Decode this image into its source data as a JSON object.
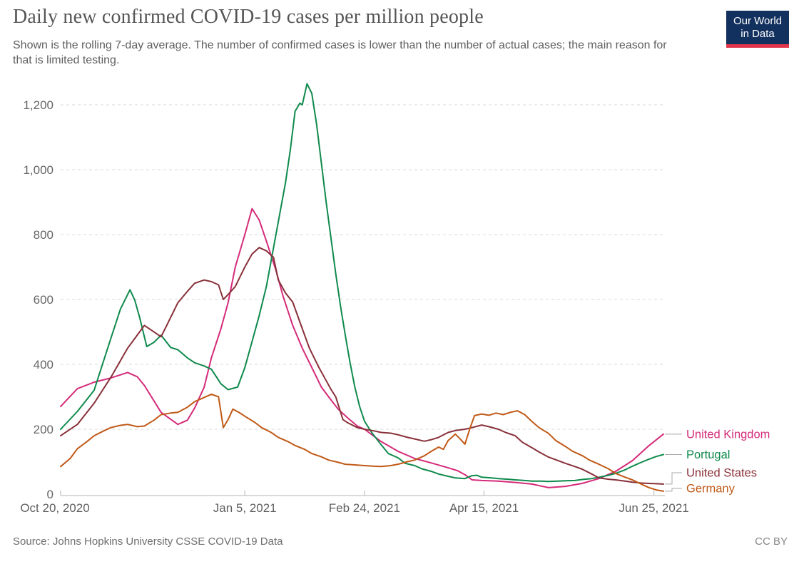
{
  "header": {
    "title": "Daily new confirmed COVID-19 cases per million people",
    "subtitle": "Shown is the rolling 7-day average. The number of confirmed cases is lower than the number of actual cases; the main reason for that is limited testing.",
    "logo": {
      "line1": "Our World",
      "line2": "in Data",
      "bg_color": "#13315e",
      "accent_color": "#e0354a"
    }
  },
  "footer": {
    "source": "Source: Johns Hopkins University CSSE COVID-19 Data",
    "license": "CC BY"
  },
  "chart_data": {
    "type": "line",
    "title": "Daily new confirmed COVID-19 cases per million people",
    "unit": "cases per million people (rolling 7-day average)",
    "grid": "horizontal dashed",
    "legend_position": "right",
    "x_axis": {
      "start_label": "Oct 20, 2020",
      "end_day": 252,
      "ticks": [
        {
          "day": 0,
          "label": "Oct 20, 2020"
        },
        {
          "day": 77,
          "label": "Jan 5, 2021"
        },
        {
          "day": 127,
          "label": "Feb 24, 2021"
        },
        {
          "day": 177,
          "label": "Apr 15, 2021"
        },
        {
          "day": 248,
          "label": "Jun 25, 2021"
        }
      ]
    },
    "y_axis": {
      "min": 0,
      "max": 1200,
      "ticks": [
        {
          "value": 0,
          "label": "0"
        },
        {
          "value": 200,
          "label": "200"
        },
        {
          "value": 400,
          "label": "400"
        },
        {
          "value": 600,
          "label": "600"
        },
        {
          "value": 800,
          "label": "800"
        },
        {
          "value": 1000,
          "label": "1,000"
        },
        {
          "value": 1200,
          "label": "1,200"
        }
      ]
    },
    "series": [
      {
        "name": "United Kingdom",
        "color": "#d42b79",
        "points": [
          [
            0,
            270
          ],
          [
            7,
            325
          ],
          [
            14,
            345
          ],
          [
            21,
            358
          ],
          [
            28,
            375
          ],
          [
            32,
            362
          ],
          [
            35,
            335
          ],
          [
            42,
            252
          ],
          [
            49,
            215
          ],
          [
            53,
            228
          ],
          [
            56,
            265
          ],
          [
            60,
            330
          ],
          [
            63,
            420
          ],
          [
            67,
            510
          ],
          [
            70,
            590
          ],
          [
            73,
            700
          ],
          [
            77,
            800
          ],
          [
            80,
            880
          ],
          [
            83,
            845
          ],
          [
            86,
            780
          ],
          [
            90,
            690
          ],
          [
            93,
            610
          ],
          [
            97,
            520
          ],
          [
            101,
            450
          ],
          [
            105,
            390
          ],
          [
            109,
            330
          ],
          [
            112,
            300
          ],
          [
            116,
            262
          ],
          [
            120,
            235
          ],
          [
            124,
            210
          ],
          [
            127,
            200
          ],
          [
            134,
            162
          ],
          [
            141,
            132
          ],
          [
            148,
            110
          ],
          [
            155,
            96
          ],
          [
            162,
            81
          ],
          [
            166,
            72
          ],
          [
            169,
            60
          ],
          [
            172,
            44
          ],
          [
            176,
            42
          ],
          [
            183,
            40
          ],
          [
            190,
            36
          ],
          [
            197,
            31
          ],
          [
            204,
            20
          ],
          [
            211,
            24
          ],
          [
            218,
            33
          ],
          [
            225,
            48
          ],
          [
            232,
            70
          ],
          [
            239,
            103
          ],
          [
            246,
            150
          ],
          [
            252,
            185
          ]
        ]
      },
      {
        "name": "Portugal",
        "color": "#0f8a4c",
        "points": [
          [
            0,
            200
          ],
          [
            7,
            255
          ],
          [
            14,
            320
          ],
          [
            21,
            480
          ],
          [
            25,
            570
          ],
          [
            29,
            630
          ],
          [
            31,
            598
          ],
          [
            33,
            545
          ],
          [
            36,
            455
          ],
          [
            39,
            468
          ],
          [
            42,
            490
          ],
          [
            46,
            452
          ],
          [
            49,
            445
          ],
          [
            53,
            420
          ],
          [
            56,
            405
          ],
          [
            60,
            395
          ],
          [
            63,
            385
          ],
          [
            67,
            340
          ],
          [
            70,
            322
          ],
          [
            74,
            330
          ],
          [
            77,
            390
          ],
          [
            80,
            470
          ],
          [
            83,
            550
          ],
          [
            86,
            640
          ],
          [
            88,
            720
          ],
          [
            90,
            800
          ],
          [
            92,
            880
          ],
          [
            94,
            960
          ],
          [
            96,
            1060
          ],
          [
            98,
            1180
          ],
          [
            100,
            1205
          ],
          [
            101,
            1200
          ],
          [
            103,
            1265
          ],
          [
            105,
            1235
          ],
          [
            107,
            1140
          ],
          [
            109,
            1020
          ],
          [
            111,
            900
          ],
          [
            113,
            790
          ],
          [
            115,
            680
          ],
          [
            117,
            580
          ],
          [
            119,
            490
          ],
          [
            121,
            405
          ],
          [
            123,
            330
          ],
          [
            125,
            270
          ],
          [
            127,
            225
          ],
          [
            130,
            190
          ],
          [
            134,
            152
          ],
          [
            137,
            125
          ],
          [
            141,
            112
          ],
          [
            144,
            95
          ],
          [
            148,
            88
          ],
          [
            151,
            78
          ],
          [
            155,
            70
          ],
          [
            158,
            62
          ],
          [
            162,
            55
          ],
          [
            165,
            50
          ],
          [
            169,
            48
          ],
          [
            172,
            57
          ],
          [
            174,
            58
          ],
          [
            176,
            52
          ],
          [
            180,
            50
          ],
          [
            183,
            48
          ],
          [
            187,
            46
          ],
          [
            190,
            44
          ],
          [
            194,
            42
          ],
          [
            197,
            40
          ],
          [
            201,
            40
          ],
          [
            204,
            39
          ],
          [
            208,
            40
          ],
          [
            211,
            41
          ],
          [
            215,
            42
          ],
          [
            218,
            45
          ],
          [
            222,
            48
          ],
          [
            225,
            52
          ],
          [
            229,
            58
          ],
          [
            232,
            64
          ],
          [
            236,
            75
          ],
          [
            239,
            86
          ],
          [
            243,
            99
          ],
          [
            246,
            108
          ],
          [
            249,
            116
          ],
          [
            252,
            122
          ]
        ]
      },
      {
        "name": "United States",
        "color": "#883039",
        "points": [
          [
            0,
            180
          ],
          [
            7,
            215
          ],
          [
            14,
            280
          ],
          [
            21,
            360
          ],
          [
            28,
            450
          ],
          [
            32,
            490
          ],
          [
            35,
            520
          ],
          [
            38,
            505
          ],
          [
            42,
            485
          ],
          [
            45,
            530
          ],
          [
            49,
            590
          ],
          [
            53,
            625
          ],
          [
            56,
            650
          ],
          [
            60,
            660
          ],
          [
            63,
            655
          ],
          [
            66,
            645
          ],
          [
            68,
            600
          ],
          [
            70,
            615
          ],
          [
            73,
            640
          ],
          [
            77,
            700
          ],
          [
            80,
            740
          ],
          [
            83,
            760
          ],
          [
            86,
            750
          ],
          [
            89,
            730
          ],
          [
            91,
            660
          ],
          [
            94,
            620
          ],
          [
            97,
            592
          ],
          [
            101,
            510
          ],
          [
            104,
            450
          ],
          [
            108,
            390
          ],
          [
            111,
            350
          ],
          [
            113,
            323
          ],
          [
            115,
            300
          ],
          [
            118,
            230
          ],
          [
            120,
            220
          ],
          [
            124,
            205
          ],
          [
            127,
            200
          ],
          [
            131,
            195
          ],
          [
            134,
            190
          ],
          [
            138,
            188
          ],
          [
            141,
            183
          ],
          [
            145,
            175
          ],
          [
            148,
            170
          ],
          [
            152,
            163
          ],
          [
            155,
            168
          ],
          [
            158,
            175
          ],
          [
            162,
            190
          ],
          [
            165,
            196
          ],
          [
            169,
            200
          ],
          [
            172,
            205
          ],
          [
            176,
            213
          ],
          [
            179,
            208
          ],
          [
            183,
            200
          ],
          [
            186,
            190
          ],
          [
            190,
            180
          ],
          [
            193,
            160
          ],
          [
            197,
            143
          ],
          [
            200,
            130
          ],
          [
            204,
            114
          ],
          [
            208,
            103
          ],
          [
            211,
            95
          ],
          [
            215,
            85
          ],
          [
            218,
            77
          ],
          [
            222,
            62
          ],
          [
            225,
            50
          ],
          [
            229,
            46
          ],
          [
            232,
            44
          ],
          [
            236,
            40
          ],
          [
            239,
            37
          ],
          [
            243,
            34
          ],
          [
            246,
            33
          ],
          [
            249,
            32
          ],
          [
            252,
            31
          ]
        ]
      },
      {
        "name": "Germany",
        "color": "#c05917",
        "points": [
          [
            0,
            85
          ],
          [
            4,
            110
          ],
          [
            7,
            140
          ],
          [
            11,
            162
          ],
          [
            14,
            180
          ],
          [
            18,
            195
          ],
          [
            21,
            205
          ],
          [
            25,
            212
          ],
          [
            28,
            215
          ],
          [
            32,
            208
          ],
          [
            35,
            210
          ],
          [
            39,
            228
          ],
          [
            42,
            245
          ],
          [
            46,
            250
          ],
          [
            49,
            252
          ],
          [
            53,
            268
          ],
          [
            56,
            285
          ],
          [
            60,
            298
          ],
          [
            63,
            308
          ],
          [
            66,
            300
          ],
          [
            68,
            205
          ],
          [
            70,
            230
          ],
          [
            72,
            262
          ],
          [
            75,
            250
          ],
          [
            77,
            240
          ],
          [
            81,
            222
          ],
          [
            84,
            205
          ],
          [
            88,
            190
          ],
          [
            91,
            175
          ],
          [
            95,
            162
          ],
          [
            98,
            150
          ],
          [
            102,
            138
          ],
          [
            105,
            125
          ],
          [
            109,
            115
          ],
          [
            112,
            105
          ],
          [
            116,
            98
          ],
          [
            119,
            92
          ],
          [
            123,
            90
          ],
          [
            127,
            88
          ],
          [
            131,
            86
          ],
          [
            134,
            85
          ],
          [
            138,
            88
          ],
          [
            141,
            92
          ],
          [
            145,
            100
          ],
          [
            148,
            105
          ],
          [
            152,
            118
          ],
          [
            155,
            132
          ],
          [
            158,
            145
          ],
          [
            160,
            138
          ],
          [
            162,
            165
          ],
          [
            165,
            185
          ],
          [
            167,
            170
          ],
          [
            169,
            154
          ],
          [
            171,
            200
          ],
          [
            173,
            242
          ],
          [
            176,
            247
          ],
          [
            179,
            243
          ],
          [
            182,
            250
          ],
          [
            185,
            245
          ],
          [
            188,
            252
          ],
          [
            191,
            257
          ],
          [
            194,
            245
          ],
          [
            197,
            224
          ],
          [
            200,
            205
          ],
          [
            204,
            187
          ],
          [
            207,
            165
          ],
          [
            211,
            147
          ],
          [
            214,
            132
          ],
          [
            218,
            119
          ],
          [
            221,
            105
          ],
          [
            225,
            92
          ],
          [
            229,
            78
          ],
          [
            232,
            64
          ],
          [
            236,
            52
          ],
          [
            239,
            44
          ],
          [
            243,
            30
          ],
          [
            246,
            20
          ],
          [
            249,
            13
          ],
          [
            252,
            9
          ]
        ]
      }
    ]
  }
}
